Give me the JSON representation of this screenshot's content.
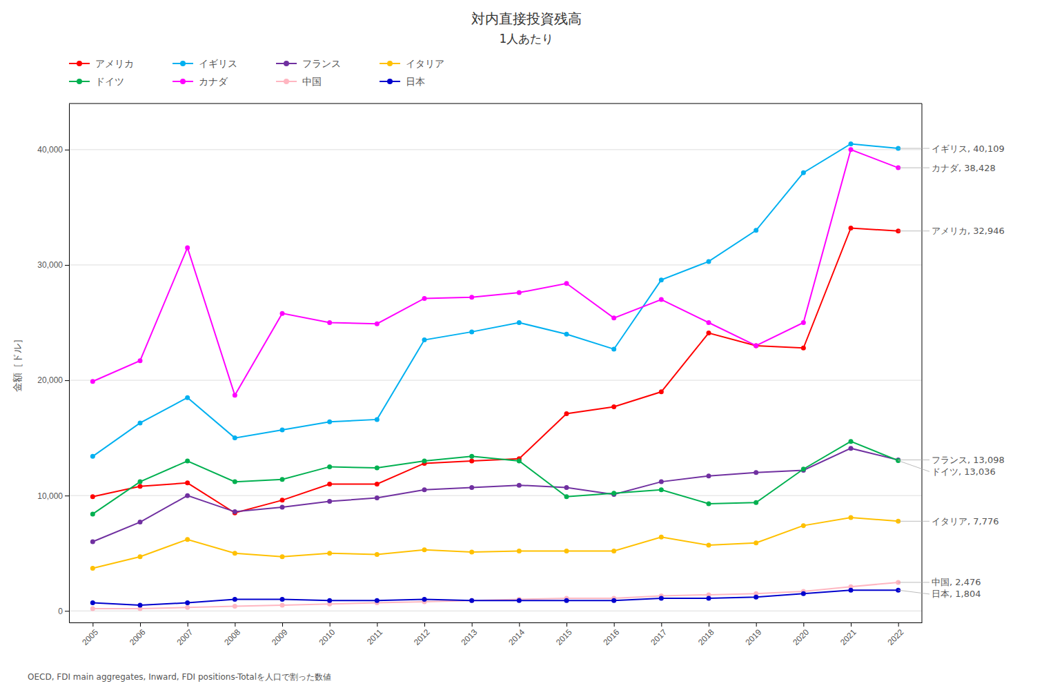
{
  "chart_data": {
    "type": "line",
    "title": "対内直接投資残高",
    "subtitle": "1人あたり",
    "y_label": "金額［ドル］",
    "footnote": "OECD, FDI main aggregates, Inward, FDI positions-Totalを人口で割った数値",
    "x": [
      2005,
      2006,
      2007,
      2008,
      2009,
      2010,
      2011,
      2012,
      2013,
      2014,
      2015,
      2016,
      2017,
      2018,
      2019,
      2020,
      2021,
      2022
    ],
    "xlim": [
      2004.5,
      2022.5
    ],
    "xticks": [
      2005,
      2006,
      2007,
      2008,
      2009,
      2010,
      2011,
      2012,
      2013,
      2014,
      2015,
      2016,
      2017,
      2018,
      2019,
      2020,
      2021,
      2022
    ],
    "ylim": [
      -1000,
      44000
    ],
    "yticks": [
      0,
      {
        "value": 10000,
        "label": "10,000"
      },
      {
        "value": 20000,
        "label": "20,000"
      },
      {
        "value": 30000,
        "label": "30,000"
      },
      {
        "value": 40000,
        "label": "40,000"
      }
    ],
    "grid": true,
    "legend": "upper left",
    "marker": "circle",
    "series": [
      {
        "name": "アメリカ",
        "color": "#ff0000",
        "values": [
          9900,
          10800,
          11100,
          8500,
          9600,
          11000,
          11000,
          12800,
          13000,
          13200,
          17100,
          17700,
          19000,
          24100,
          23000,
          22800,
          33200,
          32946
        ]
      },
      {
        "name": "イギリス",
        "color": "#00b0f0",
        "values": [
          13400,
          16300,
          18500,
          15000,
          15700,
          16400,
          16600,
          23500,
          24200,
          25000,
          24000,
          22700,
          28700,
          30300,
          33000,
          38000,
          40500,
          40109
        ]
      },
      {
        "name": "フランス",
        "color": "#7030a0",
        "values": [
          6000,
          7700,
          10000,
          8600,
          9000,
          9500,
          9800,
          10500,
          10700,
          10900,
          10700,
          10100,
          11200,
          11700,
          12000,
          12200,
          14100,
          13098
        ]
      },
      {
        "name": "イタリア",
        "color": "#ffc000",
        "values": [
          3700,
          4700,
          6200,
          5000,
          4700,
          5000,
          4900,
          5300,
          5100,
          5200,
          5200,
          5200,
          6400,
          5700,
          5900,
          7400,
          8100,
          7776
        ]
      },
      {
        "name": "ドイツ",
        "color": "#00b050",
        "values": [
          8400,
          11200,
          13000,
          11200,
          11400,
          12500,
          12400,
          13000,
          13400,
          13000,
          9900,
          10200,
          10500,
          9300,
          9400,
          12300,
          14700,
          13036
        ]
      },
      {
        "name": "カナダ",
        "color": "#ff00ff",
        "values": [
          19900,
          21700,
          31500,
          18700,
          25800,
          25000,
          24900,
          27100,
          27200,
          27600,
          28400,
          25400,
          27000,
          25000,
          23000,
          25000,
          40000,
          38428
        ]
      },
      {
        "name": "中国",
        "color": "#ffb6c1",
        "values": [
          200,
          200,
          300,
          400,
          500,
          600,
          700,
          800,
          900,
          1000,
          1100,
          1100,
          1300,
          1400,
          1500,
          1700,
          2100,
          2476
        ]
      },
      {
        "name": "日本",
        "color": "#0000cd",
        "values": [
          700,
          500,
          700,
          1000,
          1000,
          900,
          900,
          1000,
          900,
          900,
          900,
          900,
          1100,
          1100,
          1200,
          1500,
          1800,
          1804
        ]
      }
    ],
    "annotations": [
      {
        "text": "イギリス, 40,109",
        "x": 2022,
        "y": 40109
      },
      {
        "text": "カナダ, 38,428",
        "x": 2022,
        "y": 38428
      },
      {
        "text": "アメリカ, 32,946",
        "x": 2022,
        "y": 32946
      },
      {
        "text": "ドイツ, 13,036",
        "x": 2022,
        "y": 13036
      },
      {
        "text": "フランス, 13,098",
        "x": 2022,
        "y": 13098
      },
      {
        "text": "イタリア, 7,776",
        "x": 2022,
        "y": 7776
      },
      {
        "text": "中国, 2,476",
        "x": 2022,
        "y": 2476
      },
      {
        "text": "日本, 1,804",
        "x": 2022,
        "y": 1804
      }
    ]
  }
}
